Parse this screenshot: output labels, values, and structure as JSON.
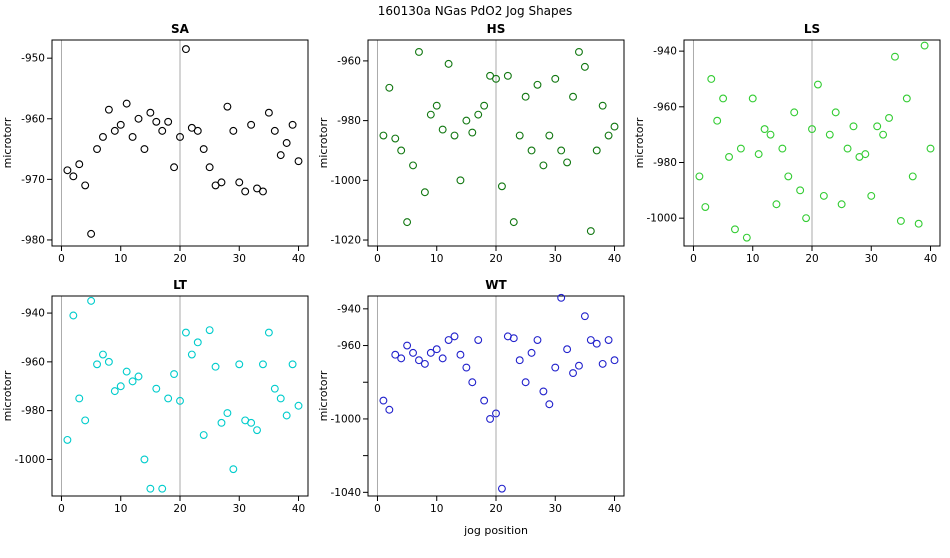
{
  "figure": {
    "title": "160130a   NGas PdO2 Jog Shapes"
  },
  "chart_data": {
    "type": "scatter",
    "title": "160130a   NGas PdO2 Jog Shapes",
    "xlabel": "jog position",
    "ylabel": "microtorr",
    "xlim": [
      -1.6,
      41.6
    ],
    "xticks": [
      0,
      10,
      20,
      30,
      40
    ],
    "xtick_labels": [
      "0",
      "10",
      "20",
      "30",
      "40"
    ],
    "vlines": [
      0,
      20
    ],
    "vline_color": "#aaaaaa",
    "point_style": "open-circle",
    "x": [
      1,
      2,
      3,
      4,
      5,
      6,
      7,
      8,
      9,
      10,
      11,
      12,
      13,
      14,
      15,
      16,
      17,
      18,
      19,
      20,
      21,
      22,
      23,
      24,
      25,
      26,
      27,
      28,
      29,
      30,
      31,
      32,
      33,
      34,
      35,
      36,
      37,
      38,
      39,
      40
    ],
    "panels": [
      {
        "title": "SA",
        "color": "#000000",
        "ylim": [
          -981,
          -947
        ],
        "yticks": [
          -950,
          -960,
          -970,
          -980
        ],
        "ytick_labels": [
          "-950",
          "-960",
          "-970",
          "-980"
        ],
        "show_xlabel": false,
        "y": [
          -968.5,
          -969.5,
          -967.5,
          -971,
          -979,
          -965,
          -963,
          -958.5,
          -962,
          -961,
          -957.5,
          -963,
          -960,
          -965,
          -959,
          -960.5,
          -962,
          -960.5,
          -968,
          -963,
          -948.5,
          -961.5,
          -962,
          -965,
          -968,
          -971,
          -970.5,
          -958,
          -962,
          -970.5,
          -972,
          -961,
          -971.5,
          -972,
          -959,
          -962,
          -966,
          -964,
          -961,
          -967
        ]
      },
      {
        "title": "HS",
        "color": "#117711",
        "ylim": [
          -1022,
          -953
        ],
        "yticks": [
          -960,
          -980,
          -1000,
          -1020
        ],
        "ytick_labels": [
          "-960",
          "-980",
          "-1000",
          "-1020"
        ],
        "show_xlabel": false,
        "y": [
          -985,
          -969,
          -986,
          -990,
          -1014,
          -995,
          -957,
          -1004,
          -978,
          -975,
          -983,
          -961,
          -985,
          -1000,
          -980,
          -984,
          -978,
          -975,
          -965,
          -966,
          -1002,
          -965,
          -1014,
          -985,
          -972,
          -990,
          -968,
          -995,
          -985,
          -966,
          -990,
          -994,
          -972,
          -957,
          -962,
          -1017,
          -990,
          -975,
          -985,
          -982
        ]
      },
      {
        "title": "LS",
        "color": "#33cc33",
        "ylim": [
          -1010,
          -936
        ],
        "yticks": [
          -940,
          -960,
          -980,
          -1000
        ],
        "ytick_labels": [
          "-940",
          "-960",
          "-980",
          "-1000"
        ],
        "show_xlabel": false,
        "y": [
          -985,
          -996,
          -950,
          -965,
          -957,
          -978,
          -1004,
          -975,
          -1007,
          -957,
          -977,
          -968,
          -970,
          -995,
          -975,
          -985,
          -962,
          -990,
          -1000,
          -968,
          -952,
          -992,
          -970,
          -962,
          -995,
          -975,
          -967,
          -978,
          -977,
          -992,
          -967,
          -970,
          -964,
          -942,
          -1001,
          -957,
          -985,
          -1002,
          -938,
          -975
        ]
      },
      {
        "title": "LT",
        "color": "#00cccc",
        "ylim": [
          -1015,
          -933
        ],
        "yticks": [
          -940,
          -960,
          -980,
          -1000
        ],
        "ytick_labels": [
          "-940",
          "-960",
          "-980",
          "-1000"
        ],
        "show_xlabel": false,
        "y": [
          -992,
          -941,
          -975,
          -984,
          -935,
          -961,
          -957,
          -960,
          -972,
          -970,
          -964,
          -968,
          -966,
          -1000,
          -1012,
          -971,
          -1012,
          -975,
          -965,
          -976,
          -948,
          -957,
          -952,
          -990,
          -947,
          -962,
          -985,
          -981,
          -1004,
          -961,
          -984,
          -985,
          -988,
          -961,
          -948,
          -971,
          -975,
          -982,
          -961,
          -978
        ]
      },
      {
        "title": "WT",
        "color": "#2222cc",
        "ylim": [
          -1042,
          -933
        ],
        "yticks": [
          -940,
          -960,
          -980,
          -1000,
          -1020,
          -1040
        ],
        "ytick_labels": [
          "-940",
          "-960",
          "",
          "-1000",
          "",
          "-1040"
        ],
        "show_xlabel": true,
        "y": [
          -990,
          -995,
          -965,
          -967,
          -960,
          -964,
          -968,
          -970,
          -964,
          -962,
          -967,
          -957,
          -955,
          -965,
          -972,
          -980,
          -957,
          -990,
          -1000,
          -997,
          -1038,
          -955,
          -956,
          -968,
          -980,
          -964,
          -957,
          -985,
          -992,
          -972,
          -934,
          -962,
          -975,
          -971,
          -944,
          -957,
          -959,
          -970,
          -957,
          -968
        ]
      }
    ]
  }
}
